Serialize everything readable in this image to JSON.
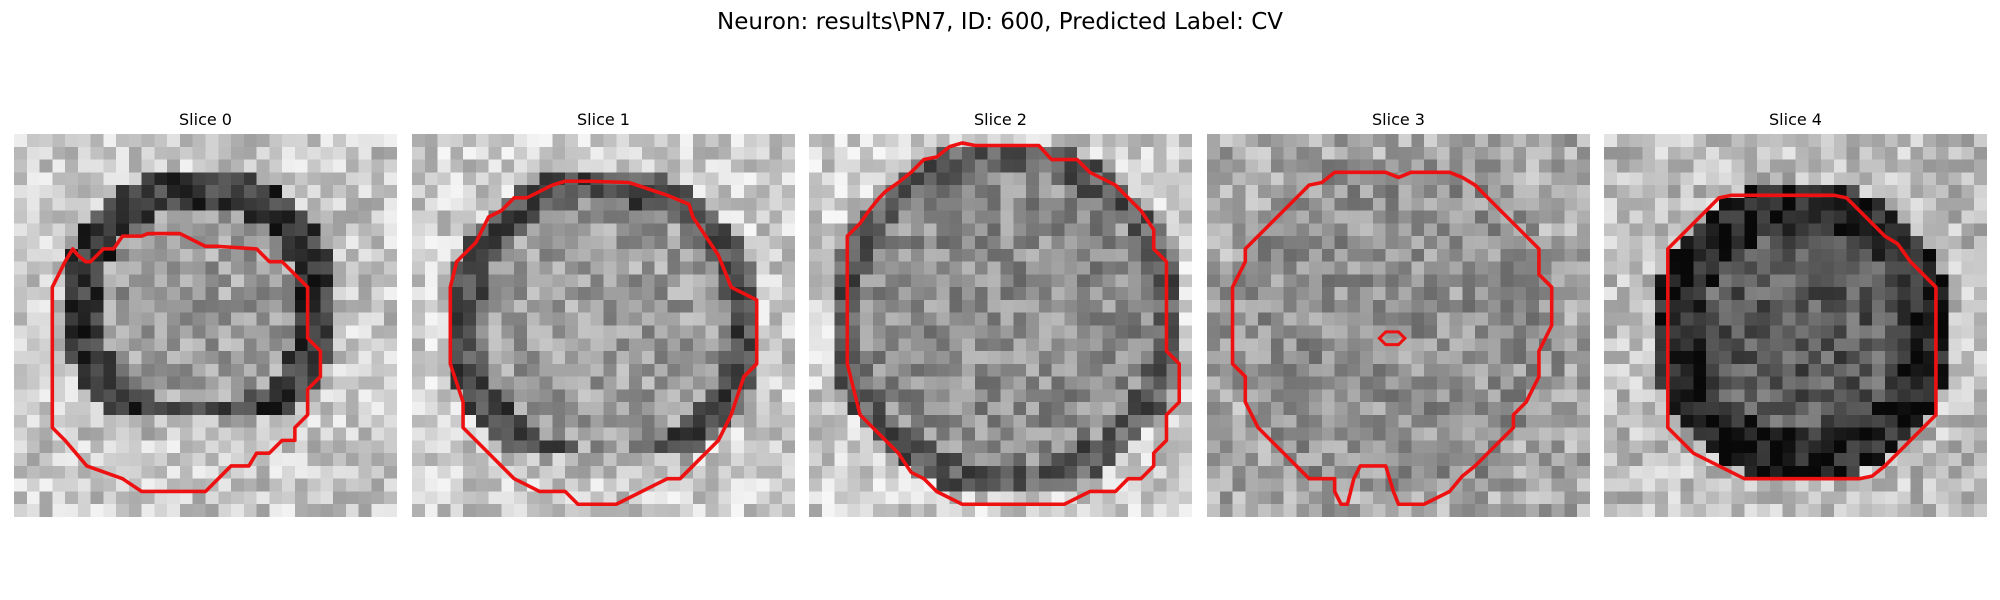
{
  "figure": {
    "suptitle": "Neuron: results\\PN7, ID: 600, Predicted Label: CV"
  },
  "panels": [
    {
      "title": "Slice 0",
      "contour_color": "#ee1111",
      "interior_tone": "mid-gray",
      "ring_tone": "dark"
    },
    {
      "title": "Slice 1",
      "contour_color": "#ee1111",
      "interior_tone": "mid-gray",
      "ring_tone": "dark"
    },
    {
      "title": "Slice 2",
      "contour_color": "#ee1111",
      "interior_tone": "mid-gray",
      "ring_tone": "dark"
    },
    {
      "title": "Slice 3",
      "contour_color": "#ee1111",
      "interior_tone": "mid-gray",
      "ring_tone": "none"
    },
    {
      "title": "Slice 4",
      "contour_color": "#ee1111",
      "interior_tone": "dark",
      "ring_tone": "light"
    }
  ],
  "colormap": "gray"
}
